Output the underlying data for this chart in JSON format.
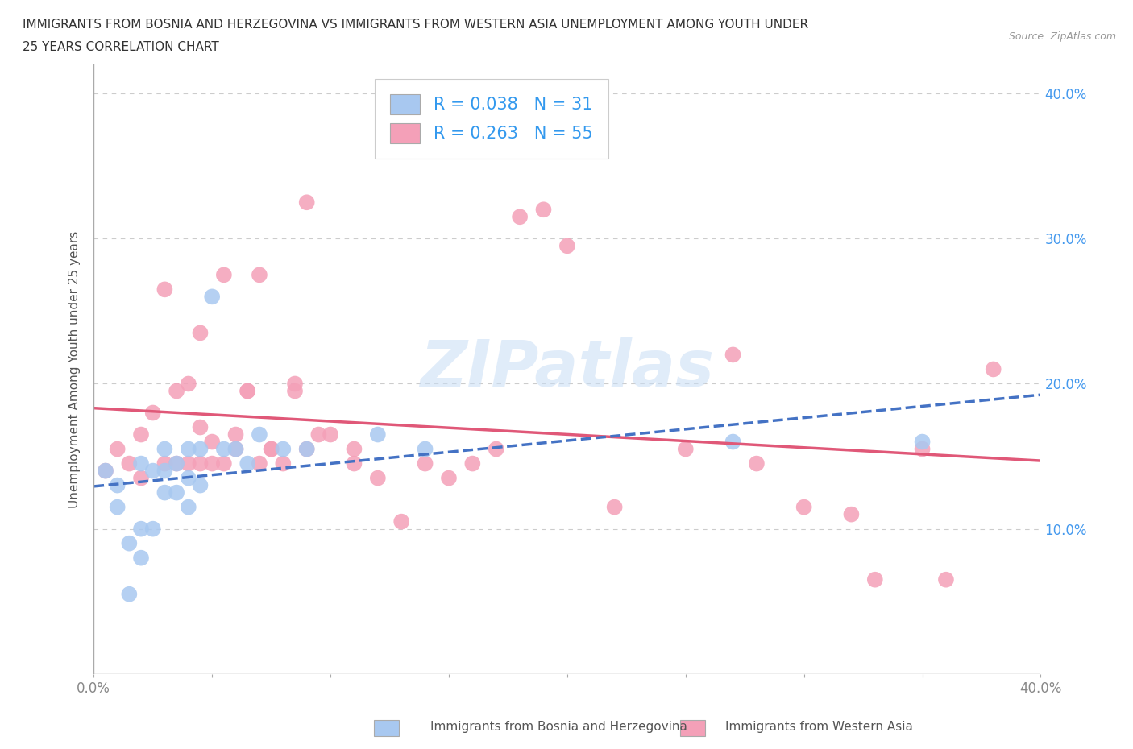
{
  "title_line1": "IMMIGRANTS FROM BOSNIA AND HERZEGOVINA VS IMMIGRANTS FROM WESTERN ASIA UNEMPLOYMENT AMONG YOUTH UNDER",
  "title_line2": "25 YEARS CORRELATION CHART",
  "source": "Source: ZipAtlas.com",
  "ylabel": "Unemployment Among Youth under 25 years",
  "xlim": [
    0.0,
    0.4
  ],
  "ylim": [
    0.0,
    0.42
  ],
  "legend_bosnia_label": "Immigrants from Bosnia and Herzegovina",
  "legend_western_label": "Immigrants from Western Asia",
  "bosnia_color": "#a8c8f0",
  "western_color": "#f4a0b8",
  "bosnia_line_color": "#4472c4",
  "western_line_color": "#e05878",
  "bosnia_R": 0.038,
  "bosnia_N": 31,
  "western_R": 0.263,
  "western_N": 55,
  "watermark": "ZIPatlas",
  "bosnia_scatter_x": [
    0.005,
    0.01,
    0.01,
    0.015,
    0.015,
    0.02,
    0.02,
    0.02,
    0.025,
    0.025,
    0.03,
    0.03,
    0.03,
    0.035,
    0.035,
    0.04,
    0.04,
    0.04,
    0.045,
    0.045,
    0.05,
    0.055,
    0.06,
    0.065,
    0.07,
    0.08,
    0.09,
    0.12,
    0.14,
    0.27,
    0.35
  ],
  "bosnia_scatter_y": [
    0.14,
    0.115,
    0.13,
    0.09,
    0.055,
    0.08,
    0.1,
    0.145,
    0.1,
    0.14,
    0.125,
    0.14,
    0.155,
    0.125,
    0.145,
    0.115,
    0.135,
    0.155,
    0.13,
    0.155,
    0.26,
    0.155,
    0.155,
    0.145,
    0.165,
    0.155,
    0.155,
    0.165,
    0.155,
    0.16,
    0.16
  ],
  "western_scatter_x": [
    0.005,
    0.01,
    0.015,
    0.02,
    0.02,
    0.025,
    0.03,
    0.03,
    0.035,
    0.035,
    0.04,
    0.04,
    0.045,
    0.045,
    0.05,
    0.05,
    0.055,
    0.06,
    0.06,
    0.065,
    0.07,
    0.07,
    0.075,
    0.08,
    0.085,
    0.09,
    0.1,
    0.11,
    0.12,
    0.13,
    0.14,
    0.15,
    0.16,
    0.17,
    0.18,
    0.19,
    0.2,
    0.22,
    0.25,
    0.27,
    0.28,
    0.3,
    0.32,
    0.33,
    0.35,
    0.36,
    0.38,
    0.09,
    0.095,
    0.11,
    0.085,
    0.075,
    0.065,
    0.055,
    0.045
  ],
  "western_scatter_y": [
    0.14,
    0.155,
    0.145,
    0.135,
    0.165,
    0.18,
    0.265,
    0.145,
    0.195,
    0.145,
    0.145,
    0.2,
    0.17,
    0.235,
    0.145,
    0.16,
    0.145,
    0.155,
    0.165,
    0.195,
    0.145,
    0.275,
    0.155,
    0.145,
    0.2,
    0.155,
    0.165,
    0.145,
    0.135,
    0.105,
    0.145,
    0.135,
    0.145,
    0.155,
    0.315,
    0.32,
    0.295,
    0.115,
    0.155,
    0.22,
    0.145,
    0.115,
    0.11,
    0.065,
    0.155,
    0.065,
    0.21,
    0.325,
    0.165,
    0.155,
    0.195,
    0.155,
    0.195,
    0.275,
    0.145
  ],
  "grid_color": "#cccccc",
  "background_color": "#ffffff",
  "title_color": "#333333",
  "label_color": "#555555",
  "right_axis_color": "#4499ee",
  "tick_color": "#888888"
}
